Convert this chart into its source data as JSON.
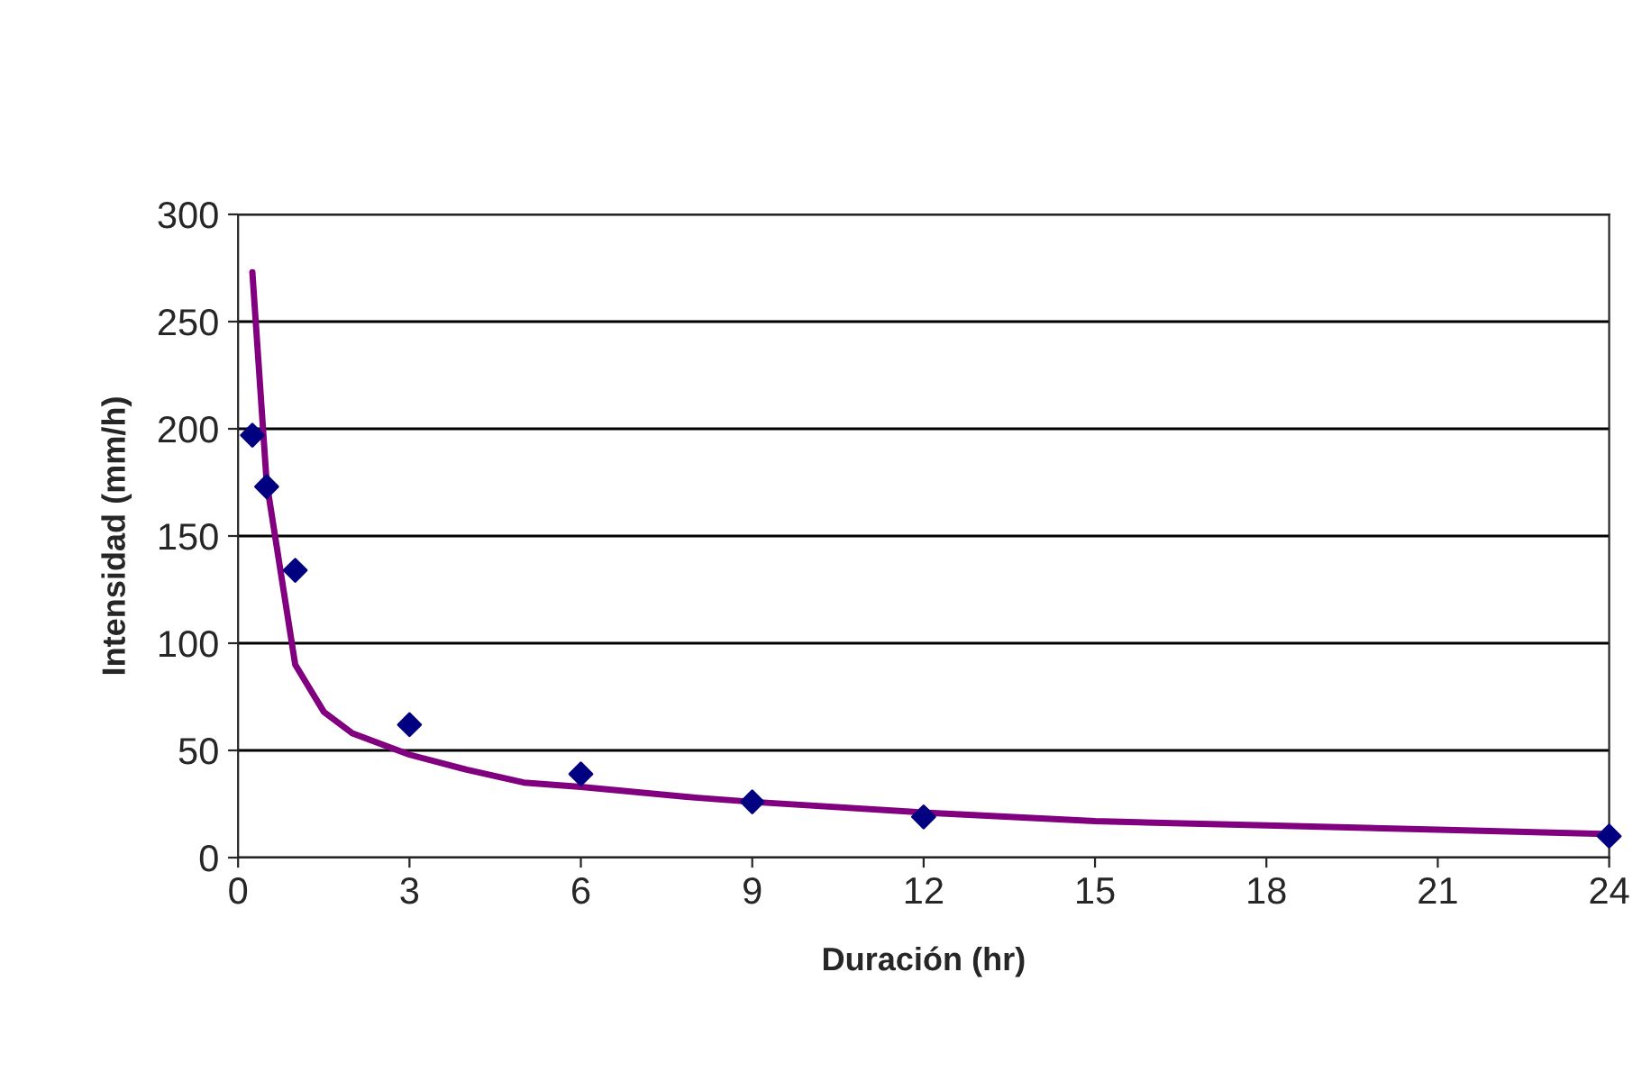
{
  "chart_data": {
    "type": "scatter",
    "xlabel": "Duración (hr)",
    "ylabel": "Intensidad (mm/h)",
    "xlim": [
      0,
      24
    ],
    "xticks": [
      0,
      3,
      6,
      9,
      12,
      15,
      18,
      21,
      24
    ],
    "ylim": [
      0,
      300
    ],
    "yticks": [
      0,
      50,
      100,
      150,
      200,
      250,
      300
    ],
    "grid": "y",
    "legend": false,
    "series": [
      {
        "marker": "diamond",
        "color": "#000080",
        "x": [
          0.25,
          0.5,
          1,
          3,
          6,
          9,
          12,
          24
        ],
        "values": [
          197,
          173,
          134,
          62,
          39,
          26,
          19,
          10
        ]
      },
      {
        "type": "line",
        "marker": "none",
        "color": "#800080",
        "x": [
          0.25,
          0.5,
          1,
          1.5,
          2,
          3,
          4,
          5,
          6,
          8,
          9,
          12,
          15,
          18,
          21,
          24
        ],
        "values": [
          273,
          175,
          90,
          68,
          58,
          48,
          41,
          35,
          33,
          28,
          26,
          21,
          17,
          15,
          13,
          11
        ]
      }
    ]
  }
}
